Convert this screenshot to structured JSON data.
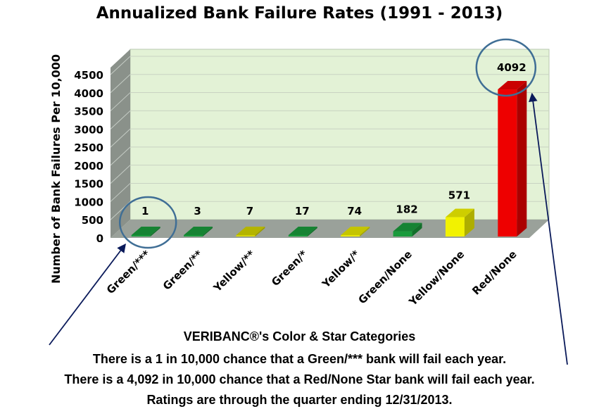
{
  "chart_data": {
    "type": "bar",
    "title": "Annualized Bank Failure Rates (1991 - 2013)",
    "xlabel": "",
    "ylabel": "Number of Bank Failures Per 10,000",
    "ylim": [
      0,
      4500
    ],
    "yticks": [
      0,
      500,
      1000,
      1500,
      2000,
      2500,
      3000,
      3500,
      4000,
      4500
    ],
    "grid": true,
    "categories": [
      "Green/***",
      "Green/**",
      "Yellow/**",
      "Green/*",
      "Yellow/*",
      "Green/None",
      "Yellow/None",
      "Red/None"
    ],
    "values": [
      1,
      3,
      7,
      17,
      74,
      182,
      571,
      4092
    ],
    "data_labels": [
      "1",
      "3",
      "7",
      "17",
      "74",
      "182",
      "571",
      "4092"
    ],
    "bar_colors": [
      "#1a9a3c",
      "#1a9a3c",
      "#d4d400",
      "#1a9a3c",
      "#e6e600",
      "#1a9a3c",
      "#f2f200",
      "#ee0000"
    ],
    "highlighted": [
      "Green/***",
      "Red/None"
    ]
  },
  "captions": {
    "heading": "VERIBANC®'s Color & Star Categories",
    "line1": "There is a 1 in 10,000 chance that a Green/*** bank will fail each year.",
    "line2": "There is a 4,092 in 10,000 chance that a Red/None Star bank will fail each year.",
    "line3": "Ratings are through the quarter ending 12/31/2013."
  },
  "colors": {
    "back_wall": "#e3f2d6",
    "side_wall": "#8a918a",
    "floor": "#9aa19a",
    "highlight_circle": "#3f6e95",
    "arrow": "#0a1a5a"
  }
}
